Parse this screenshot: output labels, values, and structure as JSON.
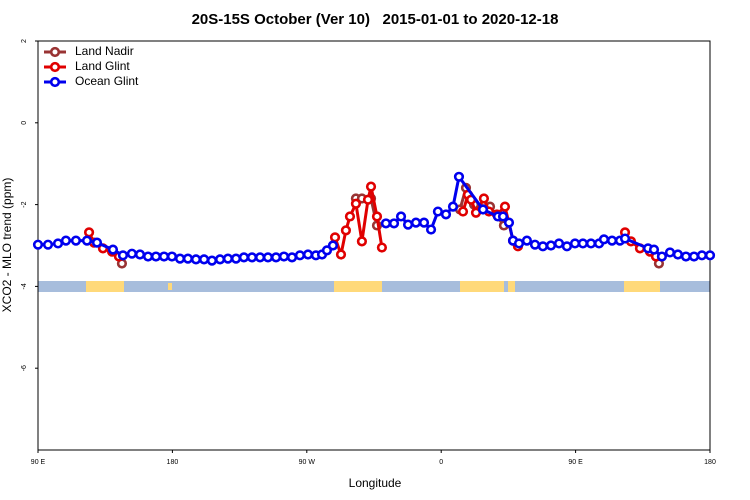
{
  "chart_data": {
    "type": "line",
    "title": "20S-15S October (Ver 10)   2015-01-01 to 2020-12-18",
    "x_label": "Longitude",
    "y_label": "XCO2 - MLO trend (ppm)",
    "xlim": [
      90,
      540
    ],
    "xticks": [
      {
        "value": 90,
        "label": "90 E"
      },
      {
        "value": 180,
        "label": "180"
      },
      {
        "value": 270,
        "label": "90 W"
      },
      {
        "value": 360,
        "label": "0"
      },
      {
        "value": 450,
        "label": "90 E"
      },
      {
        "value": 540,
        "label": "180"
      }
    ],
    "ylim": [
      -8,
      2
    ],
    "yticks": [
      2,
      0,
      -2,
      -4,
      -6
    ],
    "legend": "top-left",
    "series": [
      {
        "name": "Land Nadir",
        "color": "#993333",
        "x": [
          146.2,
          null,
          302.9,
          306.9,
          313.0,
          317.0,
          null,
          372.6,
          376.6,
          382.0,
          392.7,
          402.0,
          null,
          505.8
        ],
        "values": [
          -3.44,
          null,
          -1.85,
          -1.85,
          -1.85,
          -2.51,
          null,
          -2.12,
          -1.59,
          -2.0,
          -2.05,
          -2.51,
          null,
          -3.44
        ]
      },
      {
        "name": "Land Glint",
        "color": "#e00000",
        "x": [
          124.2,
          127.5,
          133.5,
          139.6,
          144.2,
          null,
          288.9,
          292.9,
          296.2,
          298.9,
          302.9,
          306.9,
          311.0,
          313.0,
          317.0,
          320.3,
          null,
          374.6,
          377.9,
          380.0,
          383.3,
          388.6,
          392.0,
          397.3,
          402.7,
          408.1,
          411.4,
          null,
          483.1,
          487.1,
          493.1,
          499.8,
          503.8
        ],
        "values": [
          -2.68,
          -2.93,
          -3.07,
          -3.15,
          -3.27,
          null,
          -2.8,
          -3.22,
          -2.63,
          -2.29,
          -1.98,
          -2.9,
          -1.88,
          -1.56,
          -2.29,
          -3.05,
          null,
          -2.17,
          -1.76,
          -1.88,
          -2.2,
          -1.85,
          -2.17,
          -2.24,
          -2.05,
          -2.88,
          -3.02,
          null,
          -2.68,
          -2.9,
          -3.07,
          -3.15,
          -3.27
        ]
      },
      {
        "name": "Ocean Glint",
        "color": "#0000ee",
        "x": [
          90.0,
          96.7,
          103.4,
          108.7,
          115.4,
          122.8,
          129.5,
          140.2,
          146.9,
          152.9,
          158.3,
          163.7,
          169.0,
          174.4,
          179.7,
          185.1,
          190.4,
          195.8,
          201.2,
          206.5,
          211.9,
          217.2,
          222.6,
          227.9,
          233.3,
          238.7,
          244.0,
          249.4,
          254.7,
          260.1,
          265.4,
          270.8,
          276.1,
          280.2,
          283.5,
          287.5,
          null,
          323.0,
          328.4,
          333.1,
          337.8,
          343.1,
          348.5,
          353.2,
          357.8,
          363.2,
          367.9,
          371.9,
          388.0,
          398.0,
          401.4,
          405.4,
          408.1,
          412.1,
          417.4,
          422.8,
          428.1,
          433.5,
          438.9,
          444.2,
          449.6,
          454.9,
          460.3,
          465.7,
          469.0,
          474.4,
          479.7,
          483.1,
          498.5,
          502.5,
          507.8,
          513.2,
          518.5,
          523.9,
          529.3,
          534.6,
          540.0
        ],
        "values": [
          -2.98,
          -2.98,
          -2.95,
          -2.88,
          -2.88,
          -2.88,
          -2.93,
          -3.1,
          -3.24,
          -3.2,
          -3.22,
          -3.27,
          -3.27,
          -3.27,
          -3.27,
          -3.32,
          -3.32,
          -3.34,
          -3.34,
          -3.37,
          -3.34,
          -3.32,
          -3.32,
          -3.29,
          -3.29,
          -3.29,
          -3.29,
          -3.29,
          -3.27,
          -3.29,
          -3.24,
          -3.22,
          -3.24,
          -3.22,
          -3.12,
          -3.0,
          null,
          -2.46,
          -2.46,
          -2.29,
          -2.49,
          -2.44,
          -2.44,
          -2.61,
          -2.17,
          -2.24,
          -2.05,
          -1.32,
          -2.12,
          -2.29,
          -2.29,
          -2.44,
          -2.88,
          -2.95,
          -2.88,
          -2.98,
          -3.02,
          -3.0,
          -2.95,
          -3.02,
          -2.95,
          -2.95,
          -2.95,
          -2.95,
          -2.85,
          -2.88,
          -2.88,
          -2.83,
          -3.07,
          -3.1,
          -3.27,
          -3.17,
          -3.22,
          -3.27,
          -3.27,
          -3.24,
          -3.24
        ]
      }
    ]
  }
}
